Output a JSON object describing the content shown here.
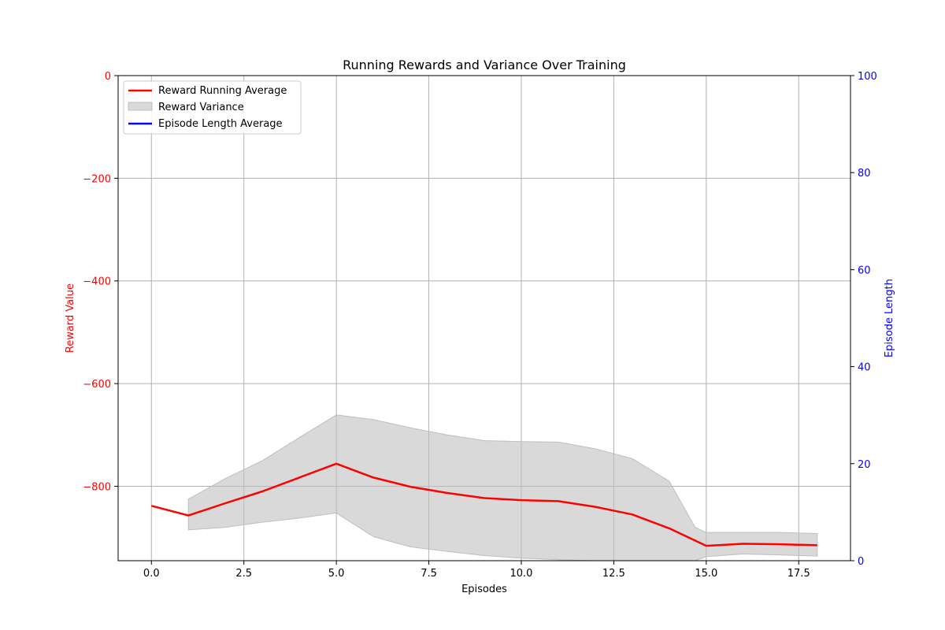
{
  "chart_data": {
    "type": "line",
    "title": "Running Rewards and Variance Over Training",
    "xlabel": "Episodes",
    "ylabel_left": "Reward Value",
    "ylabel_right": "Episode Length",
    "xlim": [
      -0.9,
      18.9
    ],
    "ylim_left": [
      -945,
      0
    ],
    "ylim_right": [
      0,
      100
    ],
    "x_ticks": [
      0.0,
      2.5,
      5.0,
      7.5,
      10.0,
      12.5,
      15.0,
      17.5
    ],
    "x_tick_labels": [
      "0.0",
      "2.5",
      "5.0",
      "7.5",
      "10.0",
      "12.5",
      "15.0",
      "17.5"
    ],
    "y_left_ticks": [
      0,
      -200,
      -400,
      -600,
      -800
    ],
    "y_left_tick_labels": [
      "0",
      "−200",
      "−400",
      "−600",
      "−800"
    ],
    "y_right_ticks": [
      0,
      20,
      40,
      60,
      80,
      100
    ],
    "y_right_tick_labels": [
      "0",
      "20",
      "40",
      "60",
      "80",
      "100"
    ],
    "grid": true,
    "legend_position": "top-left",
    "colors": {
      "reward": "#ff0000",
      "variance": "#bfbfbf",
      "length": "#0000ff",
      "grid": "#b0b0b0"
    },
    "series": [
      {
        "name": "Reward Running Average",
        "kind": "line",
        "axis": "left",
        "x": [
          0,
          1,
          2,
          3,
          4,
          5,
          6,
          7,
          8,
          9,
          10,
          11,
          12,
          13,
          14,
          15,
          16,
          17,
          18
        ],
        "values": [
          -838,
          -857,
          -833,
          -810,
          -783,
          -756,
          -783,
          -801,
          -813,
          -823,
          -827,
          -829,
          -840,
          -855,
          -882,
          -916,
          -912,
          -913,
          -915
        ]
      },
      {
        "name": "Reward Variance",
        "kind": "band",
        "axis": "left",
        "x": [
          1,
          2,
          3,
          4,
          5,
          6,
          7,
          8,
          9,
          10,
          11,
          12,
          13,
          14,
          14.7,
          15,
          16,
          17,
          18
        ],
        "upper": [
          -825,
          -785,
          -750,
          -705,
          -661,
          -670,
          -686,
          -700,
          -711,
          -713,
          -714,
          -727,
          -746,
          -790,
          -880,
          -890,
          -890,
          -890,
          -892
        ],
        "lower": [
          -885,
          -880,
          -870,
          -862,
          -852,
          -898,
          -918,
          -927,
          -935,
          -940,
          -943,
          -945,
          -945,
          -945,
          -945,
          -937,
          -932,
          -934,
          -936
        ]
      },
      {
        "name": "Episode Length Average",
        "kind": "line",
        "axis": "right",
        "x": [],
        "values": []
      }
    ]
  }
}
